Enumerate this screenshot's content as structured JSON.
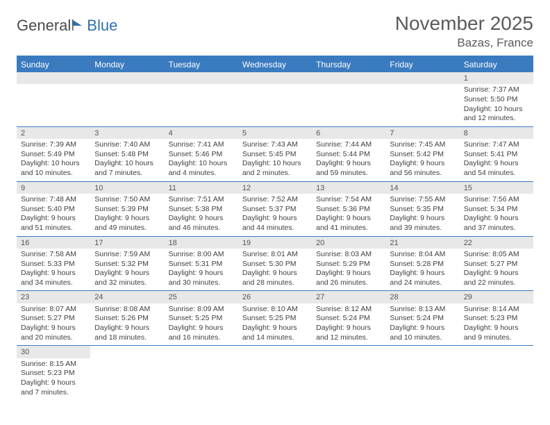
{
  "logo": {
    "text1": "General",
    "text2": "Blue"
  },
  "title": "November 2025",
  "location": "Bazas, France",
  "colors": {
    "header_bar": "#3a7bbf",
    "row_divider": "#3a7bbf",
    "daynum_bg": "#e8e8e8",
    "text": "#3f3f3f",
    "title_text": "#5a5a5a"
  },
  "weekdays": [
    "Sunday",
    "Monday",
    "Tuesday",
    "Wednesday",
    "Thursday",
    "Friday",
    "Saturday"
  ],
  "weeks": [
    [
      {
        "n": "",
        "sr": "",
        "ss": "",
        "dl": ""
      },
      {
        "n": "",
        "sr": "",
        "ss": "",
        "dl": ""
      },
      {
        "n": "",
        "sr": "",
        "ss": "",
        "dl": ""
      },
      {
        "n": "",
        "sr": "",
        "ss": "",
        "dl": ""
      },
      {
        "n": "",
        "sr": "",
        "ss": "",
        "dl": ""
      },
      {
        "n": "",
        "sr": "",
        "ss": "",
        "dl": ""
      },
      {
        "n": "1",
        "sr": "Sunrise: 7:37 AM",
        "ss": "Sunset: 5:50 PM",
        "dl": "Daylight: 10 hours and 12 minutes."
      }
    ],
    [
      {
        "n": "2",
        "sr": "Sunrise: 7:39 AM",
        "ss": "Sunset: 5:49 PM",
        "dl": "Daylight: 10 hours and 10 minutes."
      },
      {
        "n": "3",
        "sr": "Sunrise: 7:40 AM",
        "ss": "Sunset: 5:48 PM",
        "dl": "Daylight: 10 hours and 7 minutes."
      },
      {
        "n": "4",
        "sr": "Sunrise: 7:41 AM",
        "ss": "Sunset: 5:46 PM",
        "dl": "Daylight: 10 hours and 4 minutes."
      },
      {
        "n": "5",
        "sr": "Sunrise: 7:43 AM",
        "ss": "Sunset: 5:45 PM",
        "dl": "Daylight: 10 hours and 2 minutes."
      },
      {
        "n": "6",
        "sr": "Sunrise: 7:44 AM",
        "ss": "Sunset: 5:44 PM",
        "dl": "Daylight: 9 hours and 59 minutes."
      },
      {
        "n": "7",
        "sr": "Sunrise: 7:45 AM",
        "ss": "Sunset: 5:42 PM",
        "dl": "Daylight: 9 hours and 56 minutes."
      },
      {
        "n": "8",
        "sr": "Sunrise: 7:47 AM",
        "ss": "Sunset: 5:41 PM",
        "dl": "Daylight: 9 hours and 54 minutes."
      }
    ],
    [
      {
        "n": "9",
        "sr": "Sunrise: 7:48 AM",
        "ss": "Sunset: 5:40 PM",
        "dl": "Daylight: 9 hours and 51 minutes."
      },
      {
        "n": "10",
        "sr": "Sunrise: 7:50 AM",
        "ss": "Sunset: 5:39 PM",
        "dl": "Daylight: 9 hours and 49 minutes."
      },
      {
        "n": "11",
        "sr": "Sunrise: 7:51 AM",
        "ss": "Sunset: 5:38 PM",
        "dl": "Daylight: 9 hours and 46 minutes."
      },
      {
        "n": "12",
        "sr": "Sunrise: 7:52 AM",
        "ss": "Sunset: 5:37 PM",
        "dl": "Daylight: 9 hours and 44 minutes."
      },
      {
        "n": "13",
        "sr": "Sunrise: 7:54 AM",
        "ss": "Sunset: 5:36 PM",
        "dl": "Daylight: 9 hours and 41 minutes."
      },
      {
        "n": "14",
        "sr": "Sunrise: 7:55 AM",
        "ss": "Sunset: 5:35 PM",
        "dl": "Daylight: 9 hours and 39 minutes."
      },
      {
        "n": "15",
        "sr": "Sunrise: 7:56 AM",
        "ss": "Sunset: 5:34 PM",
        "dl": "Daylight: 9 hours and 37 minutes."
      }
    ],
    [
      {
        "n": "16",
        "sr": "Sunrise: 7:58 AM",
        "ss": "Sunset: 5:33 PM",
        "dl": "Daylight: 9 hours and 34 minutes."
      },
      {
        "n": "17",
        "sr": "Sunrise: 7:59 AM",
        "ss": "Sunset: 5:32 PM",
        "dl": "Daylight: 9 hours and 32 minutes."
      },
      {
        "n": "18",
        "sr": "Sunrise: 8:00 AM",
        "ss": "Sunset: 5:31 PM",
        "dl": "Daylight: 9 hours and 30 minutes."
      },
      {
        "n": "19",
        "sr": "Sunrise: 8:01 AM",
        "ss": "Sunset: 5:30 PM",
        "dl": "Daylight: 9 hours and 28 minutes."
      },
      {
        "n": "20",
        "sr": "Sunrise: 8:03 AM",
        "ss": "Sunset: 5:29 PM",
        "dl": "Daylight: 9 hours and 26 minutes."
      },
      {
        "n": "21",
        "sr": "Sunrise: 8:04 AM",
        "ss": "Sunset: 5:28 PM",
        "dl": "Daylight: 9 hours and 24 minutes."
      },
      {
        "n": "22",
        "sr": "Sunrise: 8:05 AM",
        "ss": "Sunset: 5:27 PM",
        "dl": "Daylight: 9 hours and 22 minutes."
      }
    ],
    [
      {
        "n": "23",
        "sr": "Sunrise: 8:07 AM",
        "ss": "Sunset: 5:27 PM",
        "dl": "Daylight: 9 hours and 20 minutes."
      },
      {
        "n": "24",
        "sr": "Sunrise: 8:08 AM",
        "ss": "Sunset: 5:26 PM",
        "dl": "Daylight: 9 hours and 18 minutes."
      },
      {
        "n": "25",
        "sr": "Sunrise: 8:09 AM",
        "ss": "Sunset: 5:25 PM",
        "dl": "Daylight: 9 hours and 16 minutes."
      },
      {
        "n": "26",
        "sr": "Sunrise: 8:10 AM",
        "ss": "Sunset: 5:25 PM",
        "dl": "Daylight: 9 hours and 14 minutes."
      },
      {
        "n": "27",
        "sr": "Sunrise: 8:12 AM",
        "ss": "Sunset: 5:24 PM",
        "dl": "Daylight: 9 hours and 12 minutes."
      },
      {
        "n": "28",
        "sr": "Sunrise: 8:13 AM",
        "ss": "Sunset: 5:24 PM",
        "dl": "Daylight: 9 hours and 10 minutes."
      },
      {
        "n": "29",
        "sr": "Sunrise: 8:14 AM",
        "ss": "Sunset: 5:23 PM",
        "dl": "Daylight: 9 hours and 9 minutes."
      }
    ],
    [
      {
        "n": "30",
        "sr": "Sunrise: 8:15 AM",
        "ss": "Sunset: 5:23 PM",
        "dl": "Daylight: 9 hours and 7 minutes."
      },
      {
        "n": "",
        "sr": "",
        "ss": "",
        "dl": ""
      },
      {
        "n": "",
        "sr": "",
        "ss": "",
        "dl": ""
      },
      {
        "n": "",
        "sr": "",
        "ss": "",
        "dl": ""
      },
      {
        "n": "",
        "sr": "",
        "ss": "",
        "dl": ""
      },
      {
        "n": "",
        "sr": "",
        "ss": "",
        "dl": ""
      },
      {
        "n": "",
        "sr": "",
        "ss": "",
        "dl": ""
      }
    ]
  ]
}
